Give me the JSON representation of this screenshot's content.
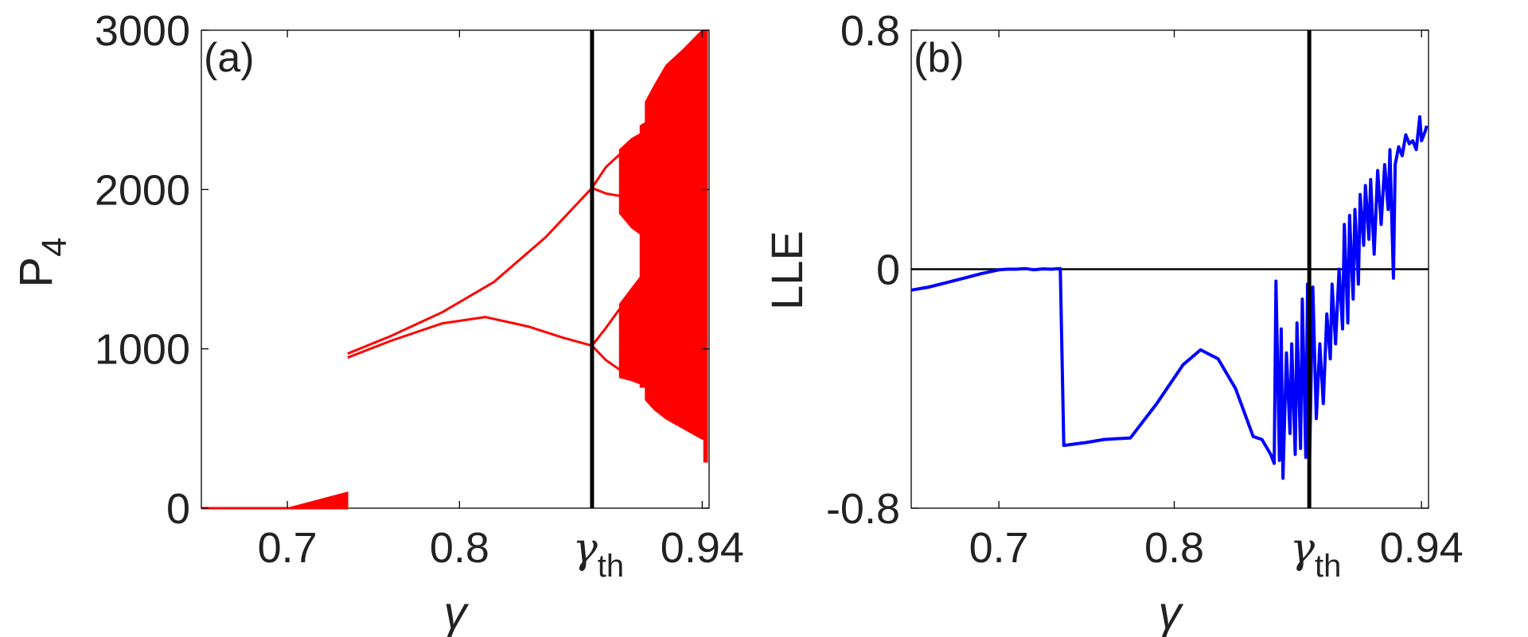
{
  "chart_data": [
    {
      "type": "scatter",
      "panel_label": "(a)",
      "xlabel": "γ",
      "ylabel_main": "P",
      "ylabel_sub": "4",
      "xlim": [
        0.65,
        0.945
      ],
      "ylim": [
        0,
        3000
      ],
      "xticks": [
        {
          "value": 0.7,
          "label": "0.7"
        },
        {
          "value": 0.8,
          "label": "0.8"
        },
        {
          "value": 0.941,
          "label": "0.94"
        }
      ],
      "threshold_label_main": "γ",
      "threshold_label_sub": "th",
      "threshold_x": 0.877,
      "yticks": [
        {
          "value": 0,
          "label": "0"
        },
        {
          "value": 1000,
          "label": "1000"
        },
        {
          "value": 2000,
          "label": "2000"
        },
        {
          "value": 3000,
          "label": "3000"
        }
      ],
      "series_color": "#ff0000",
      "threshold_color": "#000000",
      "segments": [
        {
          "kind": "line",
          "points": [
            [
              0.65,
              0
            ],
            [
              0.7,
              0
            ],
            [
              0.735,
              0
            ]
          ]
        },
        {
          "kind": "band",
          "x": [
            0.7,
            0.735
          ],
          "lower": [
            0,
            0
          ],
          "upper": [
            0,
            100
          ]
        },
        {
          "kind": "line",
          "points": [
            [
              0.735,
              970
            ],
            [
              0.76,
              1080
            ],
            [
              0.79,
              1230
            ],
            [
              0.82,
              1420
            ],
            [
              0.85,
              1700
            ],
            [
              0.877,
              2010
            ]
          ]
        },
        {
          "kind": "line",
          "points": [
            [
              0.735,
              945
            ],
            [
              0.76,
              1050
            ],
            [
              0.79,
              1160
            ],
            [
              0.815,
              1200
            ],
            [
              0.84,
              1140
            ],
            [
              0.86,
              1070
            ],
            [
              0.877,
              1020
            ]
          ]
        },
        {
          "kind": "line",
          "points": [
            [
              0.877,
              2010
            ],
            [
              0.885,
              2140
            ],
            [
              0.893,
              2220
            ]
          ]
        },
        {
          "kind": "line",
          "points": [
            [
              0.877,
              2010
            ],
            [
              0.885,
              1975
            ],
            [
              0.893,
              1960
            ]
          ]
        },
        {
          "kind": "line",
          "points": [
            [
              0.877,
              1020
            ],
            [
              0.885,
              1130
            ],
            [
              0.893,
              1250
            ]
          ]
        },
        {
          "kind": "line",
          "points": [
            [
              0.877,
              1020
            ],
            [
              0.885,
              930
            ],
            [
              0.893,
              870
            ]
          ]
        },
        {
          "kind": "band",
          "x": [
            0.893,
            0.9,
            0.905
          ],
          "lower": [
            1850,
            1760,
            1720
          ],
          "upper": [
            2250,
            2320,
            2350
          ]
        },
        {
          "kind": "band",
          "x": [
            0.893,
            0.9,
            0.905
          ],
          "lower": [
            820,
            800,
            780
          ],
          "upper": [
            1280,
            1380,
            1450
          ]
        },
        {
          "kind": "band",
          "x": [
            0.905,
            0.908
          ],
          "lower": [
            760,
            760
          ],
          "upper": [
            2400,
            2420
          ]
        },
        {
          "kind": "band",
          "x": [
            0.908,
            0.913,
            0.92,
            0.93,
            0.94,
            0.944
          ],
          "lower": [
            680,
            620,
            560,
            500,
            440,
            420
          ],
          "upper": [
            2550,
            2650,
            2780,
            2880,
            2990,
            3000
          ]
        },
        {
          "kind": "band",
          "x": [
            0.942,
            0.944
          ],
          "lower": [
            290,
            290
          ],
          "upper": [
            420,
            420
          ]
        }
      ]
    },
    {
      "type": "line",
      "panel_label": "(b)",
      "xlabel": "γ",
      "ylabel": "LLE",
      "xlim": [
        0.65,
        0.945
      ],
      "ylim": [
        -0.8,
        0.8
      ],
      "xticks": [
        {
          "value": 0.7,
          "label": "0.7"
        },
        {
          "value": 0.8,
          "label": "0.8"
        },
        {
          "value": 0.941,
          "label": "0.94"
        }
      ],
      "threshold_label_main": "γ",
      "threshold_label_sub": "th",
      "threshold_x": 0.877,
      "yticks": [
        {
          "value": -0.8,
          "label": "-0.8"
        },
        {
          "value": 0,
          "label": "0"
        },
        {
          "value": 0.8,
          "label": "0.8"
        }
      ],
      "series_color": "#0000ff",
      "threshold_color": "#000000",
      "zero_line_color": "#000000",
      "series": [
        {
          "values": [
            [
              0.65,
              -0.07
            ],
            [
              0.66,
              -0.06
            ],
            [
              0.67,
              -0.045
            ],
            [
              0.68,
              -0.03
            ],
            [
              0.69,
              -0.015
            ],
            [
              0.7,
              -0.002
            ],
            [
              0.705,
              0.0
            ],
            [
              0.71,
              0.0
            ],
            [
              0.715,
              0.002
            ],
            [
              0.72,
              -0.002
            ],
            [
              0.725,
              0.001
            ],
            [
              0.73,
              0.0
            ],
            [
              0.735,
              0.002
            ],
            [
              0.737,
              -0.59
            ],
            [
              0.75,
              -0.58
            ],
            [
              0.76,
              -0.57
            ],
            [
              0.775,
              -0.565
            ],
            [
              0.79,
              -0.45
            ],
            [
              0.805,
              -0.32
            ],
            [
              0.815,
              -0.27
            ],
            [
              0.825,
              -0.3
            ],
            [
              0.835,
              -0.4
            ],
            [
              0.845,
              -0.56
            ],
            [
              0.85,
              -0.57
            ],
            [
              0.855,
              -0.62
            ],
            [
              0.857,
              -0.65
            ],
            [
              0.858,
              -0.04
            ],
            [
              0.86,
              -0.64
            ],
            [
              0.861,
              -0.2
            ],
            [
              0.862,
              -0.7
            ],
            [
              0.864,
              -0.28
            ],
            [
              0.866,
              -0.55
            ],
            [
              0.867,
              -0.25
            ],
            [
              0.869,
              -0.62
            ],
            [
              0.87,
              -0.18
            ],
            [
              0.872,
              -0.6
            ],
            [
              0.873,
              -0.1
            ],
            [
              0.875,
              -0.63
            ],
            [
              0.876,
              -0.05
            ],
            [
              0.877,
              -0.69
            ],
            [
              0.879,
              -0.06
            ],
            [
              0.881,
              -0.5
            ],
            [
              0.883,
              -0.25
            ],
            [
              0.885,
              -0.45
            ],
            [
              0.887,
              -0.15
            ],
            [
              0.889,
              -0.3
            ],
            [
              0.89,
              -0.05
            ],
            [
              0.892,
              -0.25
            ],
            [
              0.894,
              0.0
            ],
            [
              0.896,
              -0.2
            ],
            [
              0.897,
              0.15
            ],
            [
              0.899,
              -0.18
            ],
            [
              0.9,
              0.18
            ],
            [
              0.902,
              -0.1
            ],
            [
              0.903,
              0.2
            ],
            [
              0.905,
              -0.05
            ],
            [
              0.906,
              0.25
            ],
            [
              0.908,
              0.08
            ],
            [
              0.909,
              0.28
            ],
            [
              0.911,
              0.1
            ],
            [
              0.912,
              0.3
            ],
            [
              0.914,
              0.05
            ],
            [
              0.916,
              0.33
            ],
            [
              0.918,
              0.15
            ],
            [
              0.92,
              0.35
            ],
            [
              0.922,
              0.2
            ],
            [
              0.923,
              0.4
            ],
            [
              0.925,
              -0.03
            ],
            [
              0.926,
              0.35
            ],
            [
              0.928,
              0.41
            ],
            [
              0.93,
              0.38
            ],
            [
              0.932,
              0.45
            ],
            [
              0.934,
              0.42
            ],
            [
              0.936,
              0.43
            ],
            [
              0.938,
              0.4
            ],
            [
              0.94,
              0.51
            ],
            [
              0.941,
              0.43
            ],
            [
              0.943,
              0.46
            ],
            [
              0.944,
              0.48
            ]
          ]
        }
      ]
    }
  ]
}
